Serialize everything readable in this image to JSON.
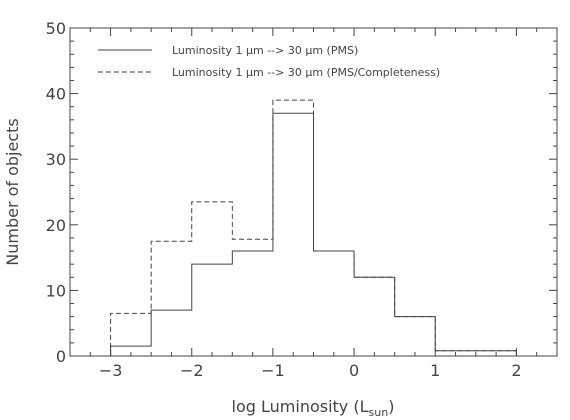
{
  "chart_data": {
    "type": "histogram",
    "xlabel": "log Luminosity (L",
    "xlabel_sub": "sun",
    "xlabel_close": ")",
    "ylabel": "Number of objects",
    "xlim": [
      -3.5,
      2.5
    ],
    "ylim": [
      0,
      50
    ],
    "xticks": [
      -3,
      -2,
      -1,
      0,
      1,
      2
    ],
    "xtick_labels": [
      "−3",
      "−2",
      "−1",
      "0",
      "1",
      "2"
    ],
    "yticks": [
      0,
      10,
      20,
      30,
      40,
      50
    ],
    "ytick_labels": [
      "0",
      "10",
      "20",
      "30",
      "40",
      "50"
    ],
    "grid": false,
    "legend_position": "top-left",
    "bin_edges": [
      -3.0,
      -2.5,
      -2.0,
      -1.5,
      -1.0,
      -0.5,
      0.0,
      0.5,
      1.0,
      1.5,
      2.0
    ],
    "series": [
      {
        "name": "Luminosity 1 μm --> 30 μm (PMS)",
        "style": "solid",
        "color": "#444444",
        "counts": [
          1.5,
          7,
          14,
          16,
          37,
          16,
          12,
          6,
          0.8,
          0.8
        ]
      },
      {
        "name": "Luminosity 1 μm --> 30 μm (PMS/Completeness)",
        "style": "dashed",
        "color": "#444444",
        "counts": [
          6.5,
          17.5,
          23.5,
          17.8,
          39,
          16,
          12,
          6,
          0.8,
          0.8
        ]
      }
    ]
  }
}
